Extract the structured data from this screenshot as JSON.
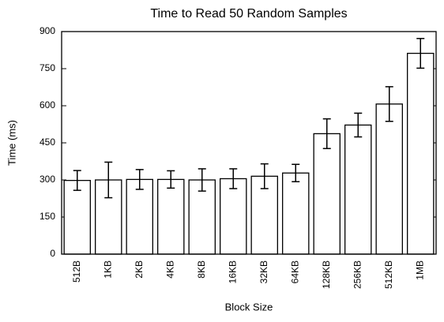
{
  "chart_data": {
    "type": "bar",
    "title": "Time to Read 50 Random Samples",
    "x_label": "Block Size",
    "y_label": "Time (ms)",
    "categories": [
      "512B",
      "1KB",
      "2KB",
      "4KB",
      "8KB",
      "16KB",
      "32KB",
      "64KB",
      "128KB",
      "256KB",
      "512KB",
      "1MB"
    ],
    "values": [
      298,
      300,
      302,
      302,
      300,
      305,
      315,
      328,
      487,
      522,
      607,
      812
    ],
    "errors": [
      40,
      72,
      40,
      35,
      45,
      40,
      50,
      35,
      60,
      48,
      70,
      60
    ],
    "color": "#ffffff",
    "ylim": [
      0,
      900
    ],
    "yticks": [
      0,
      150,
      300,
      450,
      600,
      750,
      900
    ],
    "grid": false
  }
}
